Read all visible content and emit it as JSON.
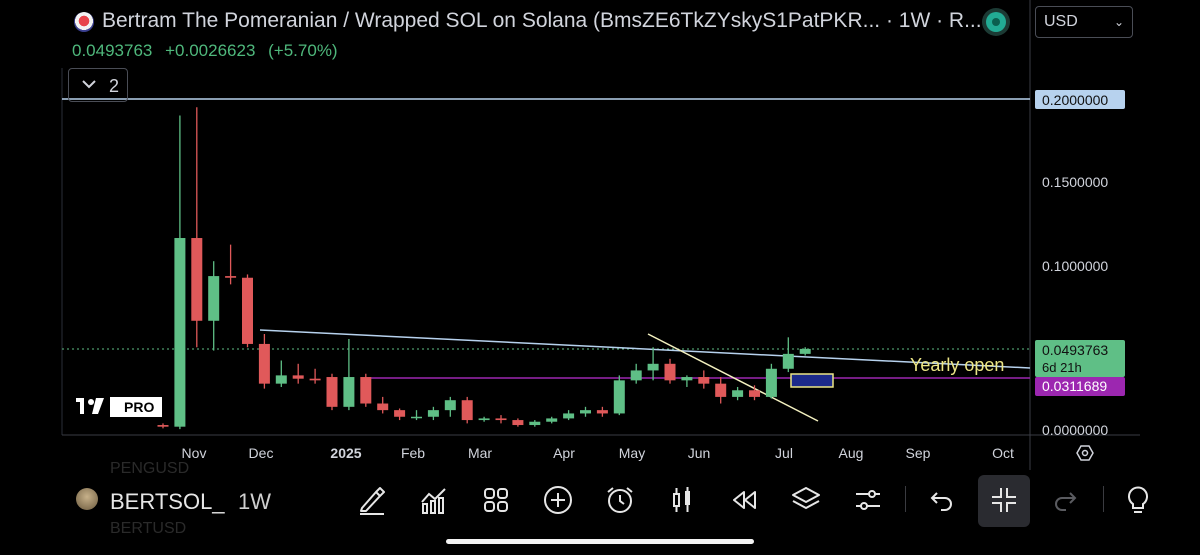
{
  "header": {
    "title": "Bertram The Pomeranian / Wrapped SOL on Solana (BmsZE6TkZYskyS1PatPKR... · 1W · R...",
    "price": "0.0493763",
    "change": "+0.0026623",
    "change_pct": "(+5.70%)",
    "currency": "USD",
    "indicator_count": "2"
  },
  "chart": {
    "price_axis": [
      "0.2000000",
      "0.1500000",
      "0.1000000",
      "0.0000000"
    ],
    "time_axis": [
      "Nov",
      "Dec",
      "2025",
      "Feb",
      "Mar",
      "Apr",
      "May",
      "Jun",
      "Jul",
      "Aug",
      "Sep",
      "Oct"
    ],
    "last_price_label": "0.0493763",
    "countdown_label": "6d 21h",
    "purple_line_label": "0.0311689",
    "annotation": "Yearly open",
    "watermark": "PRO",
    "colors": {
      "up": "#5fbf86",
      "down": "#e0595a",
      "blue_line": "#b7d2ee",
      "purple_line": "#9c27b0",
      "annotation": "#ece686"
    }
  },
  "chart_data": {
    "type": "candlestick",
    "interval": "1W",
    "y_range": [
      0,
      0.2
    ],
    "lines": [
      {
        "name": "horizontal",
        "price": 0.2
      },
      {
        "name": "purple-horizontal",
        "price": 0.0311689
      },
      {
        "name": "last-price",
        "price": 0.0493763
      }
    ],
    "candles": [
      {
        "o": 0.003,
        "h": 0.004,
        "l": 0.001,
        "c": 0.002
      },
      {
        "o": 0.002,
        "h": 0.19,
        "l": 0.0005,
        "c": 0.116
      },
      {
        "o": 0.116,
        "h": 0.195,
        "l": 0.05,
        "c": 0.066
      },
      {
        "o": 0.066,
        "h": 0.102,
        "l": 0.048,
        "c": 0.093
      },
      {
        "o": 0.093,
        "h": 0.112,
        "l": 0.088,
        "c": 0.092
      },
      {
        "o": 0.092,
        "h": 0.094,
        "l": 0.05,
        "c": 0.052
      },
      {
        "o": 0.052,
        "h": 0.058,
        "l": 0.025,
        "c": 0.028
      },
      {
        "o": 0.028,
        "h": 0.042,
        "l": 0.026,
        "c": 0.033
      },
      {
        "o": 0.033,
        "h": 0.04,
        "l": 0.028,
        "c": 0.031
      },
      {
        "o": 0.031,
        "h": 0.037,
        "l": 0.028,
        "c": 0.03
      },
      {
        "o": 0.032,
        "h": 0.034,
        "l": 0.012,
        "c": 0.014
      },
      {
        "o": 0.014,
        "h": 0.055,
        "l": 0.012,
        "c": 0.032
      },
      {
        "o": 0.032,
        "h": 0.034,
        "l": 0.014,
        "c": 0.016
      },
      {
        "o": 0.016,
        "h": 0.02,
        "l": 0.01,
        "c": 0.012
      },
      {
        "o": 0.012,
        "h": 0.013,
        "l": 0.006,
        "c": 0.008
      },
      {
        "o": 0.008,
        "h": 0.012,
        "l": 0.006,
        "c": 0.008
      },
      {
        "o": 0.008,
        "h": 0.014,
        "l": 0.006,
        "c": 0.012
      },
      {
        "o": 0.012,
        "h": 0.02,
        "l": 0.008,
        "c": 0.018
      },
      {
        "o": 0.018,
        "h": 0.02,
        "l": 0.004,
        "c": 0.006
      },
      {
        "o": 0.006,
        "h": 0.008,
        "l": 0.005,
        "c": 0.007
      },
      {
        "o": 0.007,
        "h": 0.009,
        "l": 0.004,
        "c": 0.006
      },
      {
        "o": 0.006,
        "h": 0.007,
        "l": 0.002,
        "c": 0.003
      },
      {
        "o": 0.003,
        "h": 0.006,
        "l": 0.002,
        "c": 0.005
      },
      {
        "o": 0.005,
        "h": 0.008,
        "l": 0.004,
        "c": 0.007
      },
      {
        "o": 0.007,
        "h": 0.012,
        "l": 0.006,
        "c": 0.01
      },
      {
        "o": 0.01,
        "h": 0.014,
        "l": 0.008,
        "c": 0.012
      },
      {
        "o": 0.012,
        "h": 0.014,
        "l": 0.008,
        "c": 0.01
      },
      {
        "o": 0.01,
        "h": 0.033,
        "l": 0.009,
        "c": 0.03
      },
      {
        "o": 0.03,
        "h": 0.04,
        "l": 0.028,
        "c": 0.036
      },
      {
        "o": 0.036,
        "h": 0.05,
        "l": 0.03,
        "c": 0.04
      },
      {
        "o": 0.04,
        "h": 0.043,
        "l": 0.028,
        "c": 0.03
      },
      {
        "o": 0.03,
        "h": 0.033,
        "l": 0.026,
        "c": 0.032
      },
      {
        "o": 0.032,
        "h": 0.036,
        "l": 0.025,
        "c": 0.028
      },
      {
        "o": 0.028,
        "h": 0.032,
        "l": 0.016,
        "c": 0.02
      },
      {
        "o": 0.02,
        "h": 0.026,
        "l": 0.018,
        "c": 0.024
      },
      {
        "o": 0.024,
        "h": 0.027,
        "l": 0.018,
        "c": 0.02
      },
      {
        "o": 0.02,
        "h": 0.04,
        "l": 0.019,
        "c": 0.037
      },
      {
        "o": 0.037,
        "h": 0.056,
        "l": 0.035,
        "c": 0.046
      },
      {
        "o": 0.046,
        "h": 0.05,
        "l": 0.045,
        "c": 0.049
      }
    ]
  }
}
